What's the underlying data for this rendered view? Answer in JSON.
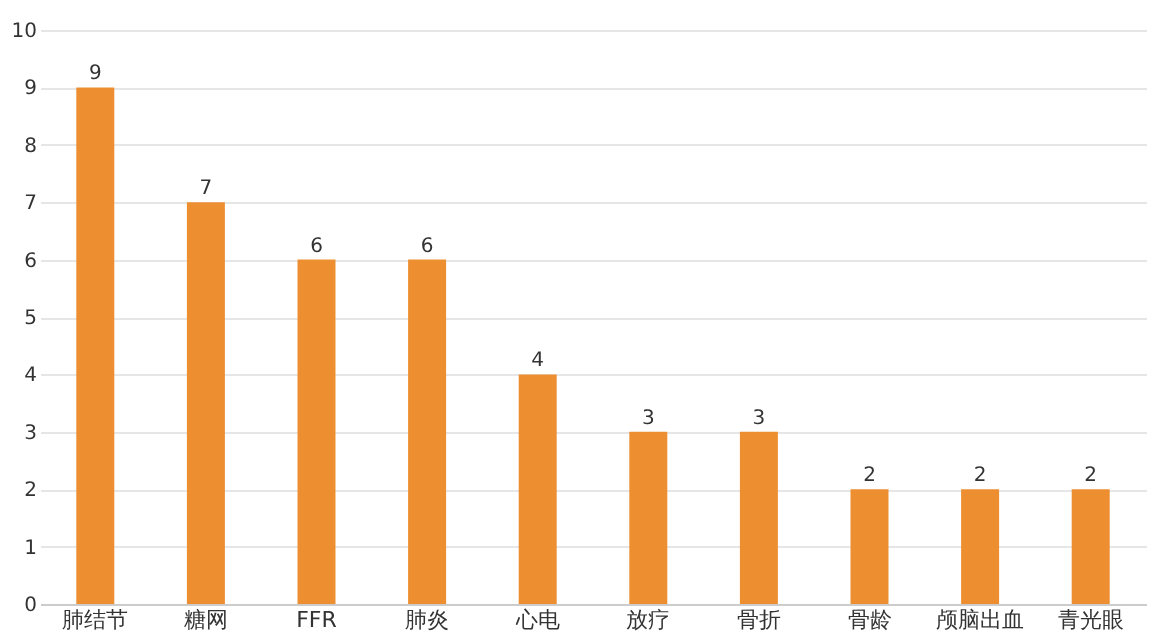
{
  "chart_data": {
    "type": "bar",
    "categories": [
      "肺结节",
      "糖网",
      "FFR",
      "肺炎",
      "心电",
      "放疗",
      "骨折",
      "骨龄",
      "颅脑出血",
      "青光眼"
    ],
    "values": [
      9,
      7,
      6,
      6,
      4,
      3,
      3,
      2,
      2,
      2
    ],
    "color": "#ed8f31",
    "ylim": [
      0,
      10
    ],
    "yticks": [
      0,
      1,
      2,
      3,
      4,
      5,
      6,
      7,
      8,
      9,
      10
    ],
    "grid": "y",
    "data_labels": true
  }
}
